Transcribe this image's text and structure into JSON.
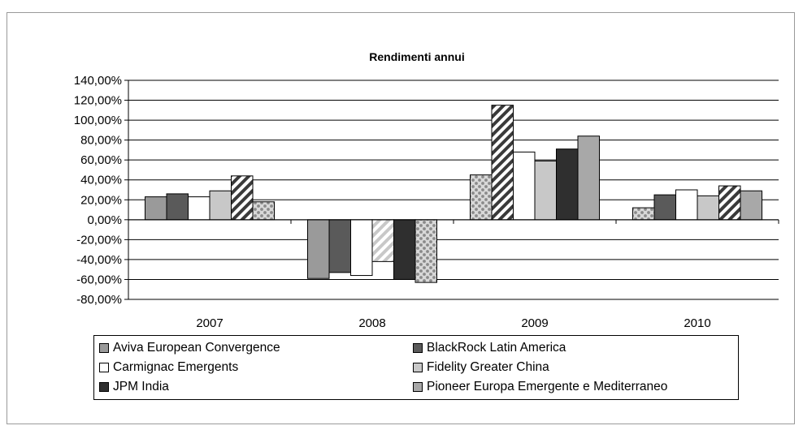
{
  "chart_data": {
    "type": "bar",
    "title": "Rendimenti annui",
    "xlabel": "",
    "ylabel": "",
    "categories": [
      "2007",
      "2008",
      "2009",
      "2010"
    ],
    "ylim": [
      -80,
      140
    ],
    "yticks": [
      140,
      120,
      100,
      80,
      60,
      40,
      20,
      0,
      -20,
      -40,
      -60,
      -80
    ],
    "ytick_labels": [
      "140,00%",
      "120,00%",
      "100,00%",
      "80,00%",
      "60,00%",
      "40,00%",
      "20,00%",
      "0,00%",
      "-20,00%",
      "-40,00%",
      "-60,00%",
      "-80,00%"
    ],
    "grid": true,
    "legend_position": "bottom",
    "series": [
      {
        "name": "Aviva European Convergence",
        "color": "#9a9a9a",
        "pattern": "solid",
        "values": [
          23,
          -59,
          45,
          12
        ]
      },
      {
        "name": "BlackRock Latin America",
        "color": "#5a5a5a",
        "pattern": "solid",
        "values": [
          26,
          -53,
          115,
          25
        ]
      },
      {
        "name": "Carmignac Emergents",
        "color": "#ffffff",
        "pattern": "solid",
        "values": [
          23,
          -56,
          68,
          30
        ]
      },
      {
        "name": "Fidelity Greater China",
        "color": "#c8c8c8",
        "pattern": "solid",
        "values": [
          29,
          -42,
          59,
          24
        ]
      },
      {
        "name": "JPM India",
        "color": "#2f2f2f",
        "pattern": "solid",
        "values": [
          44,
          -60,
          71,
          34
        ]
      },
      {
        "name": "Pioneer Europa Emergente e Mediterraneo",
        "color": "#a8a8a8",
        "pattern": "solid",
        "values": [
          18,
          -63,
          84,
          29
        ]
      }
    ],
    "bar_patterns_by_category": [
      [
        "solid",
        "solid",
        "solid",
        "solid",
        "diagonal",
        "dotted"
      ],
      [
        "solid",
        "solid",
        "solid",
        "diagonal-light",
        "solid",
        "dotted"
      ],
      [
        "dotted",
        "diagonal",
        "solid",
        "solid",
        "solid",
        "solid"
      ],
      [
        "dotted",
        "solid",
        "solid",
        "solid",
        "diagonal",
        "solid"
      ]
    ]
  }
}
